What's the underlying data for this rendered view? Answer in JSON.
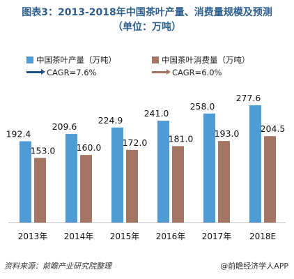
{
  "header": {
    "title_line1": "图表3：2013-2018年中国茶叶产量、消费量规模及预测",
    "title_line2": "（单位：万吨）"
  },
  "legend": {
    "production": "中国茶叶产量（万吨）",
    "consumption": "中国茶叶消费量（万吨）",
    "cagr_production": "CAGR=7.6%",
    "cagr_consumption": "CAGR=6.0%"
  },
  "footer": {
    "source": "资料来源：前瞻产业研究院整理",
    "brand": "@前瞻经济学人APP"
  },
  "colors": {
    "production": "#4e9bd6",
    "consumption": "#a47565",
    "cagr_production_line": "#1f4f86",
    "cagr_consumption_line": "#a47565",
    "title": "#2e5f8e"
  },
  "chart_data": {
    "type": "bar",
    "title": "图表3：2013-2018年中国茶叶产量、消费量规模及预测",
    "subtitle": "（单位：万吨）",
    "categories": [
      "2013年",
      "2014年",
      "2015年",
      "2016年",
      "2017年",
      "2018E"
    ],
    "series": [
      {
        "name": "中国茶叶产量（万吨）",
        "values": [
          192.4,
          209.6,
          224.9,
          241.0,
          258.0,
          277.6
        ],
        "labels": [
          "192.4",
          "209.6",
          "224.9",
          "241.0",
          "258.0",
          "277.6"
        ]
      },
      {
        "name": "中国茶叶消费量（万吨）",
        "values": [
          153.0,
          160.0,
          172.0,
          181.0,
          193.0,
          204.5
        ],
        "labels": [
          "153.0",
          "160.0",
          "172.0",
          "181.0",
          "193.0",
          "204.5"
        ]
      }
    ],
    "ylim": [
      0,
      300
    ],
    "grid": false,
    "legend_position": "top-left"
  }
}
